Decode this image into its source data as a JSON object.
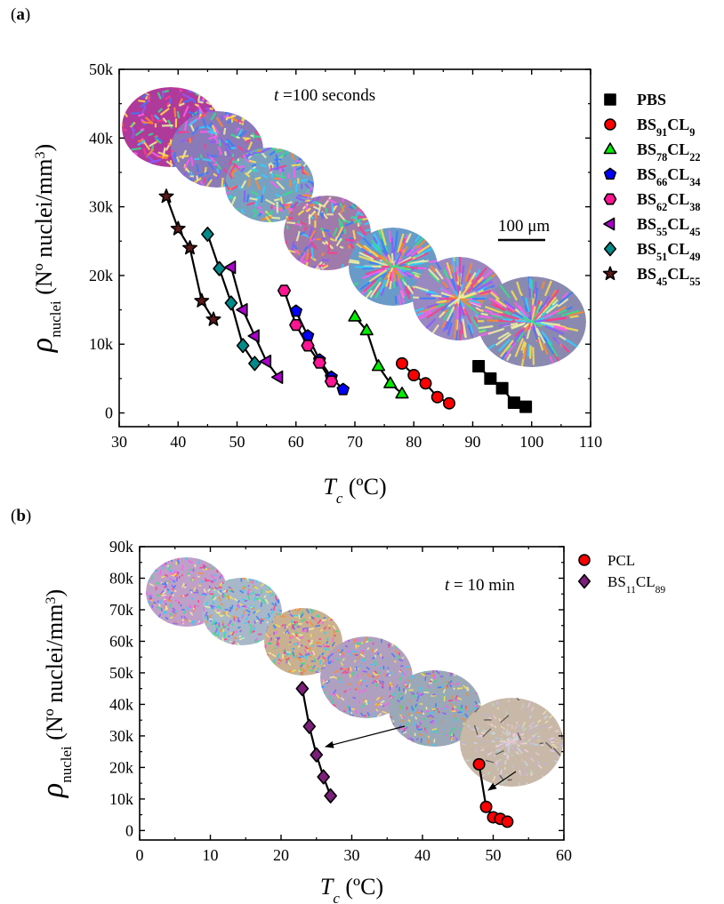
{
  "panels": [
    {
      "letter": "a"
    },
    {
      "letter": "b"
    }
  ],
  "chart_data": [
    {
      "type": "scatter",
      "panel": "a",
      "annotation": {
        "italic": "t",
        "rest": " =100 seconds"
      },
      "scale_bar_label": "100 μm",
      "xlabel": {
        "main": "T",
        "sub": "c",
        "tail": " (ºC)"
      },
      "ylabel": {
        "main": "ρ",
        "sub": "nuclei",
        "tail": " (Nº nuclei/mm",
        "sup": "3",
        "close": ")"
      },
      "xlim": [
        30,
        110
      ],
      "ylim": [
        -2000,
        50000
      ],
      "xticks": [
        30,
        40,
        50,
        60,
        70,
        80,
        90,
        100,
        110
      ],
      "xtick_labels": [
        "30",
        "40",
        "50",
        "60",
        "70",
        "80",
        "90",
        "100",
        "110"
      ],
      "yticks": [
        0,
        10000,
        20000,
        30000,
        40000,
        50000
      ],
      "ytick_labels": [
        "0",
        "10k",
        "20k",
        "30k",
        "40k",
        "50k"
      ],
      "legend_position": "right",
      "legend_bold": true,
      "series": [
        {
          "name": {
            "base": "PBS",
            "parts": []
          },
          "marker": "square",
          "color": "#000000",
          "x": [
            91,
            93,
            95,
            97,
            99
          ],
          "y": [
            6800,
            5000,
            3600,
            1500,
            900
          ]
        },
        {
          "name": {
            "base": "BS",
            "parts": [
              [
                "91",
                "CL"
              ],
              [
                "9",
                ""
              ]
            ]
          },
          "marker": "circle",
          "color": "#ff0000",
          "x": [
            78,
            80,
            82,
            84,
            86
          ],
          "y": [
            7200,
            5500,
            4300,
            2300,
            1400
          ]
        },
        {
          "name": {
            "base": "BS",
            "parts": [
              [
                "78",
                "CL"
              ],
              [
                "22",
                ""
              ]
            ]
          },
          "marker": "triangle-up",
          "color": "#00ee00",
          "x": [
            70,
            72,
            74,
            76,
            78
          ],
          "y": [
            14000,
            12000,
            6800,
            4300,
            2800
          ]
        },
        {
          "name": {
            "base": "BS",
            "parts": [
              [
                "66",
                "CL"
              ],
              [
                "34",
                ""
              ]
            ]
          },
          "marker": "pentagon",
          "color": "#0000ff",
          "x": [
            60,
            62,
            64,
            66,
            68
          ],
          "y": [
            14800,
            11200,
            7700,
            5200,
            3400
          ]
        },
        {
          "name": {
            "base": "BS",
            "parts": [
              [
                "62",
                "CL"
              ],
              [
                "38",
                ""
              ]
            ]
          },
          "marker": "hexagon",
          "color": "#ff1493",
          "x": [
            58,
            60,
            62,
            64,
            66
          ],
          "y": [
            17800,
            12800,
            9800,
            7300,
            4600
          ]
        },
        {
          "name": {
            "base": "BS",
            "parts": [
              [
                "55",
                "CL"
              ],
              [
                "45",
                ""
              ]
            ]
          },
          "marker": "triangle-left",
          "color": "#aa00cc",
          "x": [
            49,
            51,
            53,
            55,
            57
          ],
          "y": [
            21200,
            15000,
            11200,
            7500,
            5200
          ]
        },
        {
          "name": {
            "base": "BS",
            "parts": [
              [
                "51",
                "CL"
              ],
              [
                "49",
                ""
              ]
            ]
          },
          "marker": "diamond",
          "color": "#008b8b",
          "x": [
            45,
            47,
            49,
            51,
            53
          ],
          "y": [
            26000,
            21000,
            16000,
            9800,
            7200
          ]
        },
        {
          "name": {
            "base": "BS",
            "parts": [
              [
                "45",
                "CL"
              ],
              [
                "55",
                ""
              ]
            ]
          },
          "marker": "star",
          "color": "#5a1a1a",
          "x": [
            38,
            40,
            42,
            44,
            46
          ],
          "y": [
            31500,
            26800,
            24000,
            16300,
            13600
          ]
        }
      ]
    },
    {
      "type": "scatter",
      "panel": "b",
      "annotation": {
        "italic": "t",
        "rest": " = 10 min"
      },
      "xlabel": {
        "main": "T",
        "sub": "c",
        "tail": " (ºC)"
      },
      "ylabel": {
        "main": "ρ",
        "sub": "nuclei",
        "tail": " (Nº nuclei/mm",
        "sup": "3",
        "close": ")"
      },
      "xlim": [
        0,
        60
      ],
      "ylim": [
        -3000,
        90000
      ],
      "xticks": [
        0,
        10,
        20,
        30,
        40,
        50,
        60
      ],
      "xtick_labels": [
        "0",
        "10",
        "20",
        "30",
        "40",
        "50",
        "60"
      ],
      "yticks": [
        0,
        10000,
        20000,
        30000,
        40000,
        50000,
        60000,
        70000,
        80000,
        90000
      ],
      "ytick_labels": [
        "0",
        "10k",
        "20k",
        "30k",
        "40k",
        "50k",
        "60k",
        "70k",
        "80k",
        "90k"
      ],
      "legend_position": "right",
      "legend_bold": false,
      "series": [
        {
          "name": {
            "base": "PCL",
            "parts": []
          },
          "marker": "circle",
          "color": "#ff0000",
          "x": [
            48,
            49,
            50,
            51,
            52
          ],
          "y": [
            21000,
            7500,
            4200,
            3700,
            2800
          ]
        },
        {
          "name": {
            "base": "BS",
            "parts": [
              [
                "11",
                "CL"
              ],
              [
                "89",
                ""
              ]
            ]
          },
          "marker": "diamond",
          "color": "#7b1f7b",
          "x": [
            23,
            24,
            25,
            26,
            27
          ],
          "y": [
            45000,
            33000,
            24000,
            17000,
            11000
          ]
        }
      ]
    }
  ]
}
